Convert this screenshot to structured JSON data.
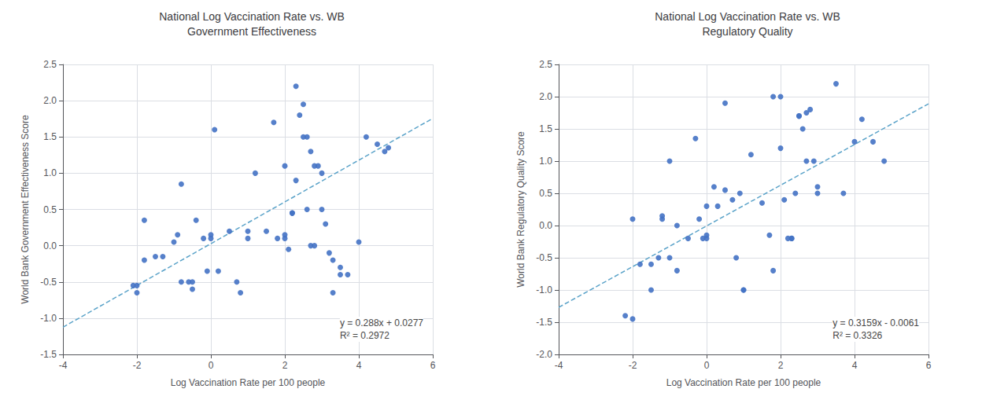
{
  "chart_data": [
    {
      "type": "scatter",
      "title": "National Log Vaccination Rate vs. WB\nGovernment Effectiveness",
      "xlabel": "Log Vaccination Rate per 100 people",
      "ylabel": "World Bank Government Effectiveness Score",
      "xlim": [
        -4,
        6
      ],
      "ylim": [
        -1.5,
        2.5
      ],
      "xticks": [
        -4,
        -2,
        0,
        2,
        4,
        6
      ],
      "yticks": [
        -1.5,
        {
          "value": -1,
          "label": "-1.0"
        },
        -0.5,
        {
          "value": 0,
          "label": "0.0"
        },
        0.5,
        {
          "value": 1,
          "label": "1.0"
        },
        1.5,
        {
          "value": 2,
          "label": "2.0"
        },
        2.5
      ],
      "grid": true,
      "annotations": [
        "y = 0.288x + 0.0277",
        "R² = 0.2972"
      ],
      "series": [
        {
          "type": "scatter",
          "color": "#4472C4",
          "marker": "circle",
          "x": [
            -2.1,
            -2.0,
            -2.0,
            -1.8,
            -1.8,
            -1.5,
            -1.3,
            -1.0,
            -0.9,
            -0.8,
            -0.8,
            -0.6,
            -0.5,
            -0.5,
            -0.4,
            -0.2,
            -0.1,
            0.0,
            0.0,
            0.1,
            0.2,
            0.5,
            0.7,
            0.8,
            1.0,
            1.0,
            1.2,
            1.5,
            1.7,
            1.8,
            2.0,
            2.0,
            2.0,
            2.1,
            2.2,
            2.2,
            2.3,
            2.3,
            2.4,
            2.5,
            2.5,
            2.6,
            2.6,
            2.7,
            2.7,
            2.8,
            2.8,
            2.9,
            3.0,
            3.0,
            3.1,
            3.2,
            3.3,
            3.3,
            3.5,
            3.5,
            3.7,
            4.0,
            4.2,
            4.5,
            4.7,
            4.8
          ],
          "values": [
            -0.55,
            -0.55,
            -0.65,
            0.35,
            -0.2,
            -0.15,
            -0.15,
            0.05,
            0.15,
            0.85,
            -0.5,
            -0.5,
            -0.6,
            -0.5,
            0.35,
            0.1,
            -0.35,
            0.1,
            0.15,
            1.6,
            -0.35,
            0.2,
            -0.5,
            -0.65,
            0.2,
            0.1,
            1.0,
            0.2,
            1.7,
            0.1,
            0.1,
            0.15,
            1.1,
            -0.05,
            0.45,
            0.45,
            2.2,
            0.9,
            1.8,
            1.95,
            1.5,
            1.5,
            0.5,
            1.3,
            0.0,
            0.0,
            1.1,
            1.1,
            1.0,
            0.5,
            0.3,
            -0.1,
            -0.2,
            -0.65,
            -0.4,
            -0.3,
            -0.4,
            0.05,
            1.5,
            1.4,
            1.3,
            1.35
          ]
        },
        {
          "type": "line",
          "color": "#5BA3C9",
          "line_style": "dashed",
          "x": [
            -4,
            6
          ],
          "values": [
            -1.1243,
            1.7557
          ]
        }
      ]
    },
    {
      "type": "scatter",
      "title": "National Log Vaccination Rate vs. WB\nRegulatory Quality",
      "xlabel": "Log Vaccination Rate per 100 people",
      "ylabel": "World Bank Regulatory Quality Score",
      "xlim": [
        -4,
        6
      ],
      "ylim": [
        -2,
        2.5
      ],
      "xticks": [
        -4,
        -2,
        0,
        2,
        4,
        6
      ],
      "yticks": [
        {
          "value": -2,
          "label": "-2.0"
        },
        -1.5,
        {
          "value": -1,
          "label": "-1.0"
        },
        -0.5,
        {
          "value": 0,
          "label": "0.0"
        },
        0.5,
        {
          "value": 1,
          "label": "1.0"
        },
        1.5,
        {
          "value": 2,
          "label": "2.0"
        },
        2.5
      ],
      "grid": true,
      "annotations": [
        "y = 0.3159x - 0.0061",
        "R² = 0.3326"
      ],
      "series": [
        {
          "type": "scatter",
          "color": "#4472C4",
          "marker": "circle",
          "x": [
            -2.2,
            -2.0,
            -2.0,
            -1.8,
            -1.5,
            -1.5,
            -1.3,
            -1.2,
            -1.2,
            -1.0,
            -1.0,
            -0.8,
            -0.8,
            -0.5,
            -0.3,
            -0.2,
            -0.1,
            0.0,
            0.0,
            0.0,
            0.2,
            0.3,
            0.5,
            0.5,
            0.7,
            0.8,
            0.9,
            1.0,
            1.0,
            1.2,
            1.5,
            1.7,
            1.8,
            1.8,
            2.0,
            2.0,
            2.1,
            2.2,
            2.3,
            2.3,
            2.4,
            2.5,
            2.5,
            2.6,
            2.7,
            2.7,
            2.8,
            2.9,
            3.0,
            3.0,
            3.5,
            3.7,
            4.0,
            4.2,
            4.5,
            4.8
          ],
          "values": [
            -1.4,
            -1.45,
            0.1,
            -0.6,
            -1.0,
            -0.6,
            -0.5,
            0.1,
            0.15,
            1.0,
            -0.5,
            -0.7,
            0.0,
            -0.2,
            1.35,
            0.1,
            -0.2,
            0.3,
            -0.2,
            -0.15,
            0.6,
            0.3,
            0.55,
            1.9,
            0.4,
            -0.5,
            0.5,
            -1.0,
            -1.0,
            1.1,
            0.35,
            -0.15,
            2.0,
            -0.7,
            2.0,
            1.2,
            0.4,
            -0.2,
            -0.2,
            -0.2,
            0.5,
            1.7,
            1.7,
            1.5,
            1.0,
            1.75,
            1.8,
            1.0,
            0.5,
            0.6,
            2.2,
            0.5,
            1.3,
            1.65,
            1.3,
            1.0
          ]
        },
        {
          "type": "line",
          "color": "#5BA3C9",
          "line_style": "dashed",
          "x": [
            -4,
            6
          ],
          "values": [
            -1.2697,
            1.8893
          ]
        }
      ]
    }
  ]
}
